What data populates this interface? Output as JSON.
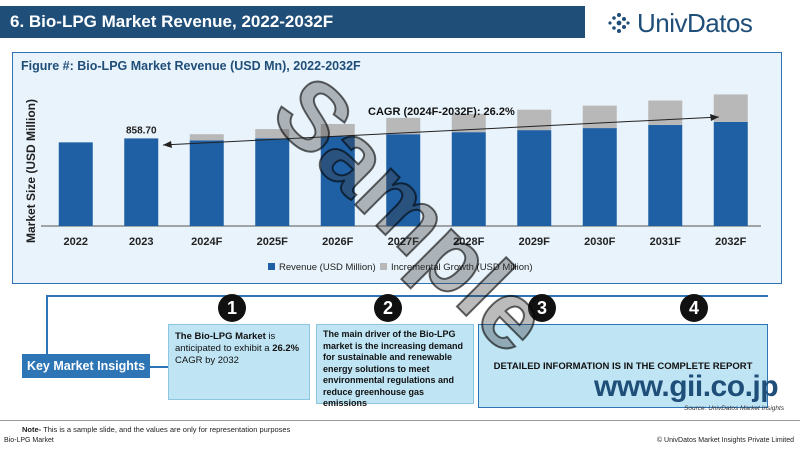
{
  "header": {
    "title": "6. Bio-LPG Market Revenue, 2022-2032F",
    "logo_text": "UnivDatos"
  },
  "chart": {
    "figure_title": "Figure #: Bio-LPG Market Revenue (USD Mn), 2022-2032F",
    "cagr_text": "CAGR (2024F-2032F): 26.2%",
    "colors": {
      "revenue": "#1f5fa3",
      "incremental": "#b8b8b8",
      "axis": "#555555"
    }
  },
  "chart_data": {
    "type": "bar",
    "stacked": true,
    "categories": [
      "2022",
      "2023",
      "2024F",
      "2025F",
      "2026F",
      "2027F",
      "2028F",
      "2029F",
      "2030F",
      "2031F",
      "2032F"
    ],
    "series": [
      {
        "name": "Revenue (USD Million)",
        "values": [
          820,
          858.7,
          840,
          860,
          880,
          900,
          920,
          940,
          960,
          990,
          1020
        ]
      },
      {
        "name": "Incremental Growth (USD Million)",
        "values": [
          0,
          0,
          60,
          90,
          120,
          160,
          180,
          200,
          220,
          240,
          270
        ]
      }
    ],
    "data_labels": [
      {
        "category": "2023",
        "text": "858.70"
      }
    ],
    "ylabel": "Market Size (USD Million)",
    "xlabel": "",
    "ylim": [
      0,
      1500
    ],
    "legend_position": "bottom",
    "grid": false
  },
  "insights": {
    "section_label": "Key Market Insights",
    "numbers": [
      "1",
      "2",
      "3",
      "4"
    ],
    "box1": {
      "part1": "The Bio-LPG Market",
      "part2": " is anticipated to exhibit a ",
      "part3": "26.2%",
      "part4": " CAGR by 2032"
    },
    "box2": "The main driver of the Bio-LPG market is the increasing demand for sustainable and renewable energy solutions to meet environmental regulations and reduce greenhouse gas emissions",
    "detail_text": "DETAILED INFORMATION IS IN THE COMPLETE REPORT",
    "source": "Source: UnivDatos Market Insights"
  },
  "overlay": {
    "sample_text": "Sample",
    "watermark": "www.gii.co.jp"
  },
  "footer": {
    "note_label": "Note-",
    "note_text": " This is a sample slide, and the values are only for representation purposes",
    "left": "Bio-LPG Market",
    "right": "© UnivDatos Market Insights Private Limited"
  }
}
